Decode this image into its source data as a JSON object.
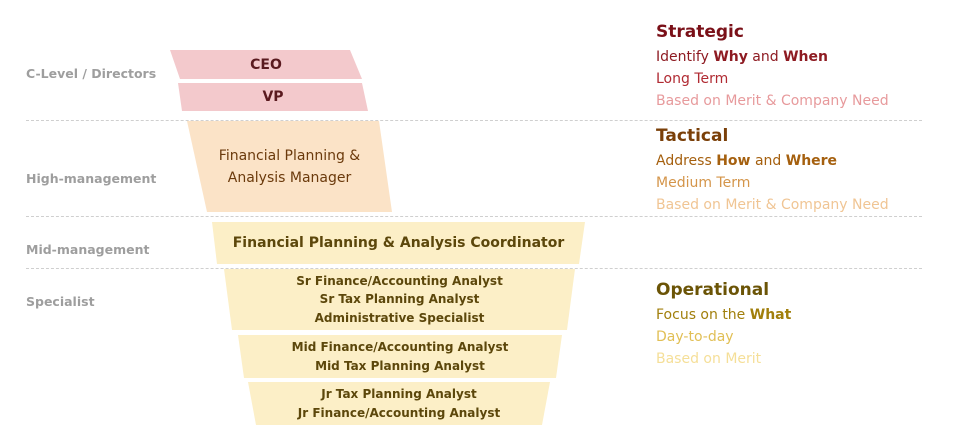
{
  "levels": {
    "clevel": "C-Level / Directors",
    "high": "High-management",
    "mid": "Mid-management",
    "specialist": "Specialist"
  },
  "roles": {
    "ceo": "CEO",
    "vp": "VP",
    "manager_line1": "Financial Planning &",
    "manager_line2": "Analysis Manager",
    "coordinator": "Financial Planning & Analysis Coordinator",
    "sr_line1": "Sr Finance/Accounting Analyst",
    "sr_line2": "Sr Tax Planning Analyst",
    "sr_line3": "Administrative Specialist",
    "mid_line1": "Mid Finance/Accounting Analyst",
    "mid_line2": "Mid Tax Planning Analyst",
    "jr_line1": "Jr Tax Planning Analyst",
    "jr_line2": "Jr Finance/Accounting Analyst"
  },
  "strategic": {
    "title": "Strategic",
    "l1_pre": "Identify ",
    "l1_b1": "Why",
    "l1_mid": " and ",
    "l1_b2": "When",
    "l2": "Long Term",
    "l3": "Based on Merit & Company Need"
  },
  "tactical": {
    "title": "Tactical",
    "l1_pre": "Address ",
    "l1_b1": "How",
    "l1_mid": " and ",
    "l1_b2": "Where",
    "l2": "Medium Term",
    "l3": "Based on Merit & Company Need"
  },
  "operational": {
    "title": "Operational",
    "l1_pre": "Focus on the ",
    "l1_b1": "What",
    "l2": "Day-to-day",
    "l3": "Based on Merit"
  },
  "colors": {
    "strategic": "#7a1018",
    "tactical": "#7a3f08",
    "operational": "#6b5406",
    "pink_box": "#f3c9cc",
    "peach_box": "#fbe3c7",
    "yellow_box": "#fcefc7",
    "level_label": "#9e9e9e"
  }
}
